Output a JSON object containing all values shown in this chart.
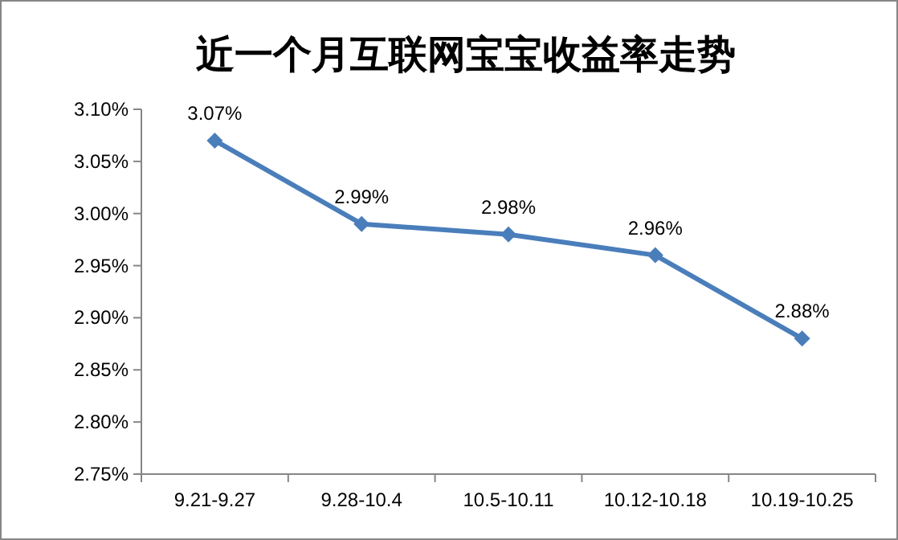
{
  "chart_data": {
    "type": "line",
    "title": "近一个月互联网宝宝收益率走势",
    "categories": [
      "9.21-9.27",
      "9.28-10.4",
      "10.5-10.11",
      "10.12-10.18",
      "10.19-10.25"
    ],
    "series": [
      {
        "color": "#4a7ebb",
        "values": [
          3.07,
          2.99,
          2.98,
          2.96,
          2.88
        ],
        "value_labels": [
          "3.07%",
          "2.99%",
          "2.98%",
          "2.96%",
          "2.88%"
        ]
      }
    ],
    "ylim": [
      2.75,
      3.1
    ],
    "yticks": [
      {
        "value": 2.75,
        "label": "2.75%"
      },
      {
        "value": 2.8,
        "label": "2.80%"
      },
      {
        "value": 2.85,
        "label": "2.85%"
      },
      {
        "value": 2.9,
        "label": "2.90%"
      },
      {
        "value": 2.95,
        "label": "2.95%"
      },
      {
        "value": 3.0,
        "label": "3.00%"
      },
      {
        "value": 3.05,
        "label": "3.05%"
      },
      {
        "value": 3.1,
        "label": "3.10%"
      }
    ],
    "marker": "diamond",
    "line_style": "solid"
  }
}
